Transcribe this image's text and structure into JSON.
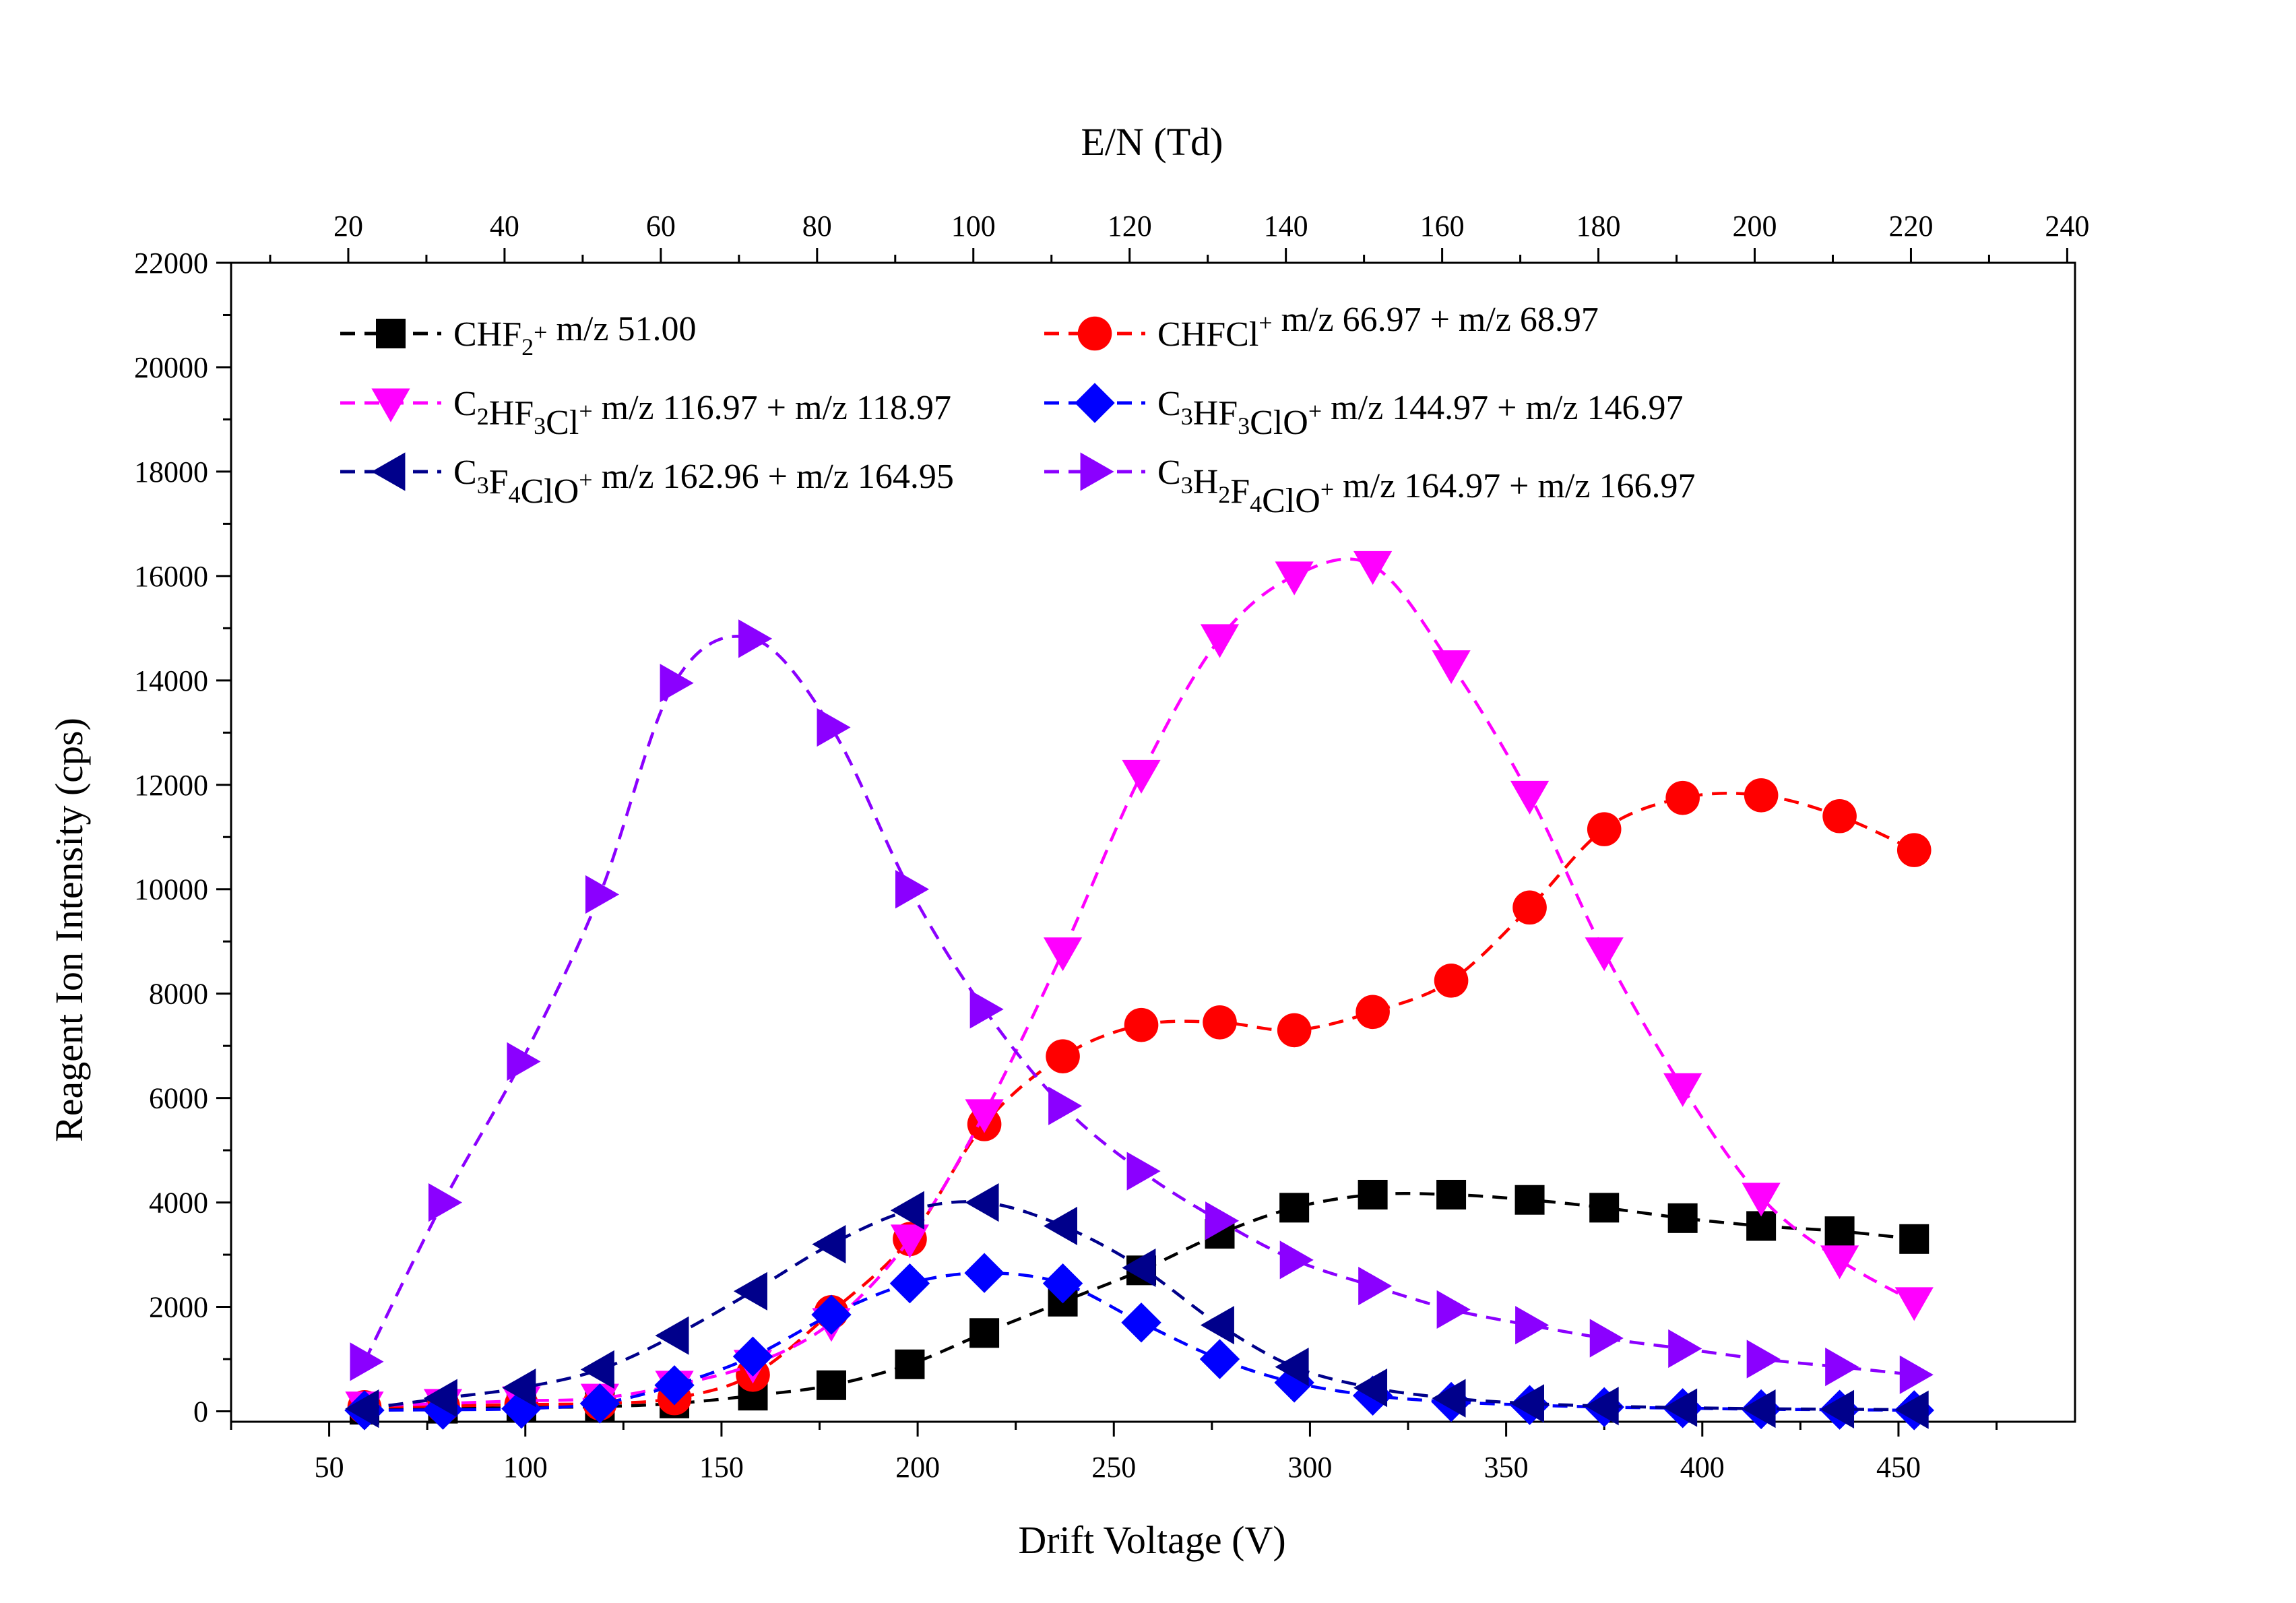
{
  "chart_data": {
    "type": "line",
    "xlabel": "Drift Voltage (V)",
    "ylabel": "Reagent Ion Intensity (cps)",
    "top_xlabel": "E/N (Td)",
    "xlim": [
      25,
      495
    ],
    "ylim": [
      -200,
      22000
    ],
    "top_xlim": [
      5,
      241
    ],
    "x_ticks": [
      50,
      100,
      150,
      200,
      250,
      300,
      350,
      400,
      450
    ],
    "x_tick_labels": [
      "50",
      "100",
      "150",
      "200",
      "250",
      "300",
      "350",
      "400",
      "450"
    ],
    "y_ticks": [
      0,
      2000,
      4000,
      6000,
      8000,
      10000,
      12000,
      14000,
      16000,
      18000,
      20000,
      22000
    ],
    "y_tick_labels": [
      "0",
      "2000",
      "4000",
      "6000",
      "8000",
      "10000",
      "12000",
      "14000",
      "16000",
      "18000",
      "20000",
      "22000"
    ],
    "top_x_ticks": [
      20,
      40,
      60,
      80,
      100,
      120,
      140,
      160,
      180,
      200,
      220,
      240
    ],
    "top_x_tick_labels": [
      "20",
      "40",
      "60",
      "80",
      "100",
      "120",
      "140",
      "160",
      "180",
      "200",
      "220",
      "240"
    ],
    "grid": false,
    "legend_position": "top",
    "x": [
      59,
      79,
      99,
      119,
      138,
      158,
      178,
      198,
      217,
      237,
      257,
      277,
      296,
      316,
      336,
      356,
      375,
      395,
      415,
      435,
      454
    ],
    "series": [
      {
        "name": "CHF2+ m/z 51.00",
        "legend": {
          "main": "CHF",
          "sub": "2",
          "sup": "+",
          "rest": " m/z 51.00"
        },
        "color": "#000000",
        "marker": "square",
        "values": [
          30,
          50,
          70,
          90,
          150,
          300,
          500,
          900,
          1500,
          2100,
          2700,
          3400,
          3900,
          4150,
          4150,
          4050,
          3900,
          3700,
          3550,
          3450,
          3300
        ]
      },
      {
        "name": "CHFCl+ m/z 66.97 + m/z 68.97",
        "legend": {
          "main": "CHFCl",
          "sub": "",
          "sup": "+",
          "rest": " m/z 66.97 + m/z 68.97"
        },
        "color": "#ff0000",
        "marker": "circle",
        "values": [
          80,
          100,
          130,
          150,
          250,
          700,
          1900,
          3300,
          5500,
          6800,
          7400,
          7450,
          7300,
          7650,
          8250,
          9650,
          11150,
          11750,
          11800,
          11400,
          10750
        ]
      },
      {
        "name": "C2HF3Cl+ m/z 116.97 + m/z 118.97",
        "legend": {
          "main": "C₂HF₃Cl",
          "sub": "",
          "sup": "+",
          "rest": " m/z 116.97 + m/z 118.97"
        },
        "color": "#ff00ff",
        "marker": "triangle-down",
        "values": [
          100,
          150,
          200,
          250,
          500,
          900,
          1700,
          3300,
          5700,
          8800,
          12200,
          14800,
          16000,
          16200,
          14300,
          11800,
          8800,
          6200,
          4100,
          2900,
          2100
        ]
      },
      {
        "name": "C3HF3ClO+ m/z 144.97 + m/z 146.97",
        "legend": {
          "main": "C₃HF₃ClO",
          "sub": "",
          "sup": "+",
          "rest": " m/z 144.97 + m/z 146.97"
        },
        "color": "#0000ff",
        "marker": "diamond",
        "values": [
          20,
          30,
          50,
          150,
          500,
          1050,
          1850,
          2450,
          2650,
          2450,
          1700,
          1000,
          550,
          300,
          180,
          120,
          80,
          60,
          40,
          30,
          20
        ]
      },
      {
        "name": "C3F4ClO+ m/z 162.96 + m/z 164.95",
        "legend": {
          "main": "C₃F₄ClO",
          "sub": "",
          "sup": "+",
          "rest": " m/z 162.96 + m/z 164.95"
        },
        "color": "#00008b",
        "marker": "triangle-left",
        "values": [
          50,
          250,
          450,
          800,
          1450,
          2300,
          3200,
          3850,
          4000,
          3550,
          2750,
          1650,
          850,
          450,
          250,
          150,
          100,
          70,
          50,
          40,
          30
        ]
      },
      {
        "name": "C3H2F4ClO+ m/z 164.97 + m/z 166.97",
        "legend": {
          "main": "C₃H₂F₄ClO",
          "sub": "",
          "sup": "+",
          "rest": " m/z 164.97 + m/z 166.97"
        },
        "color": "#8b00ff",
        "marker": "triangle-right",
        "values": [
          950,
          4000,
          6700,
          9900,
          13950,
          14800,
          13100,
          10000,
          7700,
          5850,
          4600,
          3650,
          2900,
          2400,
          1950,
          1650,
          1400,
          1200,
          1000,
          850,
          700
        ]
      }
    ]
  }
}
